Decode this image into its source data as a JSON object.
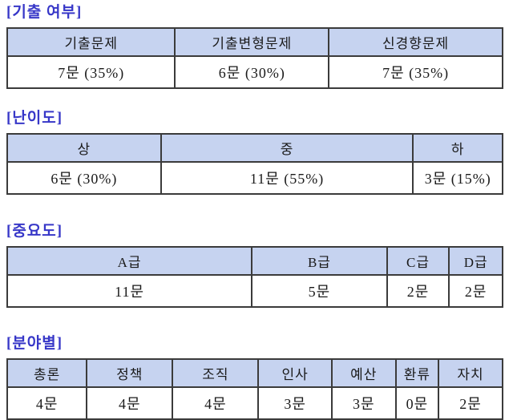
{
  "colors": {
    "title_text": "#3737c8",
    "header_background": "#c6d3f0",
    "table_border": "#3b3b3b",
    "cell_text": "#1a1a1a",
    "page_background": "#ffffff"
  },
  "sections": [
    {
      "title": "[기출 여부]",
      "headers": [
        "기출문제",
        "기출변형문제",
        "신경향문제"
      ],
      "values": [
        "7문 (35%)",
        "6문 (30%)",
        "7문 (35%)"
      ]
    },
    {
      "title": "[난이도]",
      "headers": [
        "상",
        "중",
        "하"
      ],
      "values": [
        "6문 (30%)",
        "11문 (55%)",
        "3문 (15%)"
      ]
    },
    {
      "title": "[중요도]",
      "headers": [
        "A급",
        "B급",
        "C급",
        "D급"
      ],
      "values": [
        "11문",
        "5문",
        "2문",
        "2문"
      ]
    },
    {
      "title": "[분야별]",
      "headers": [
        "총론",
        "정책",
        "조직",
        "인사",
        "예산",
        "환류",
        "자치"
      ],
      "values": [
        "4문",
        "4문",
        "4문",
        "3문",
        "3문",
        "0문",
        "2문"
      ]
    }
  ]
}
